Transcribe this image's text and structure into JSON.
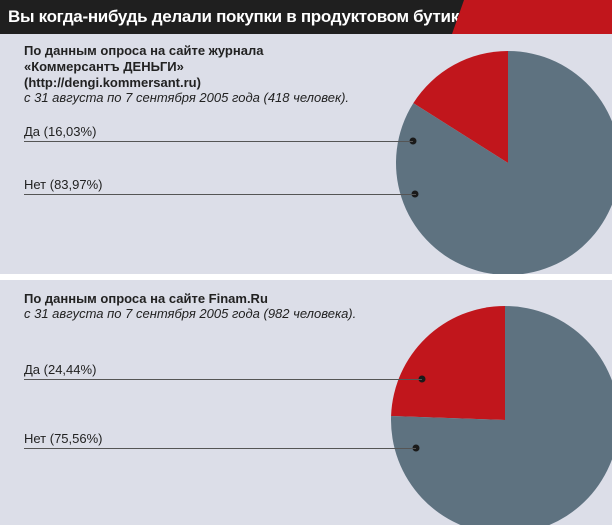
{
  "header": {
    "title": "Вы когда-нибудь делали покупки в продуктовом бутике?",
    "accent_color": "#c1161c"
  },
  "colors": {
    "yes": "#c1161c",
    "no": "#5e7280",
    "dot": "#1a1a1a"
  },
  "chart_data": [
    {
      "type": "pie",
      "title": "По данным опроса на сайте журнала «Коммерсантъ ДЕНЬГИ» (http://dengi.kommersant.ru)",
      "source_lines": [
        "По данным опроса на сайте журнала",
        "«Коммерсантъ ДЕНЬГИ»",
        "(http://dengi.kommersant.ru)"
      ],
      "subtitle": "с 31 августа  по 7 сентября 2005 года (418 человек).",
      "categories": [
        "Да",
        "Нет"
      ],
      "values": [
        16.03,
        83.97
      ],
      "labels": [
        "Да (16,03%)",
        "Нет (83,97%)"
      ]
    },
    {
      "type": "pie",
      "title": "По данным опроса на сайте Finam.Ru",
      "source_lines": [
        "По данным опроса на сайте Finam.Ru"
      ],
      "subtitle": "с 31 августа  по 7 сентября 2005 года (982 человека).",
      "categories": [
        "Да",
        "Нет"
      ],
      "values": [
        24.44,
        75.56
      ],
      "labels": [
        "Да (24,44%)",
        "Нет (75,56%)"
      ]
    }
  ]
}
